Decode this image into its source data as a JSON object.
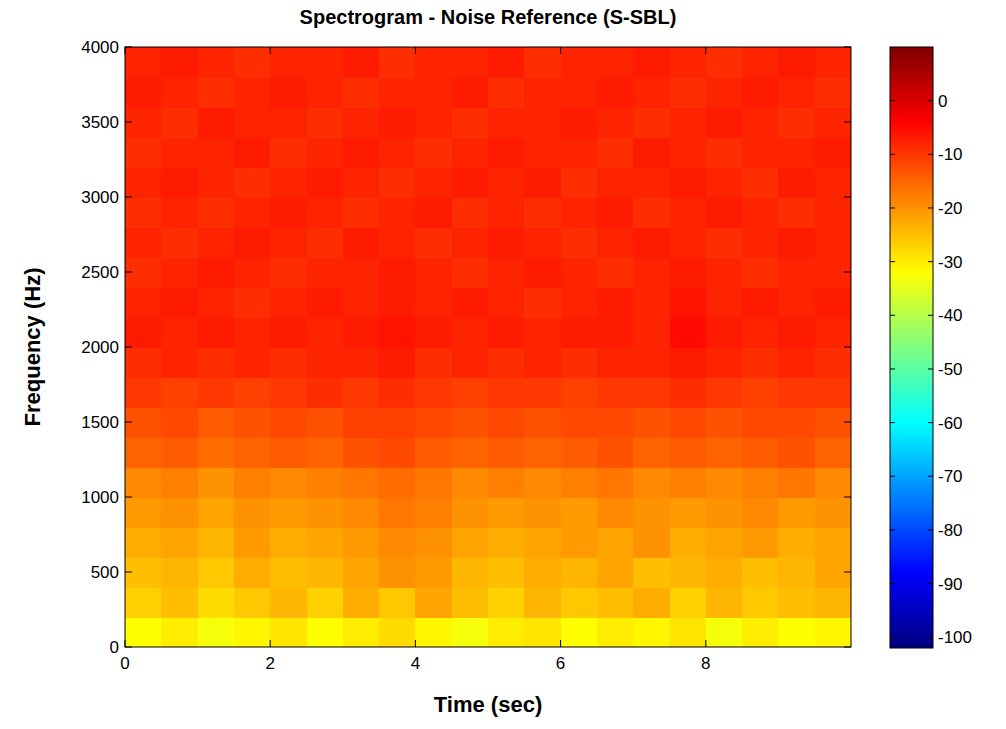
{
  "chart_data": {
    "type": "heatmap",
    "title": "Spectrogram - Noise Reference (S-SBL)",
    "x_label": "Time (sec)",
    "y_label": "Frequency (Hz)",
    "xlim": [
      0,
      10
    ],
    "ylim": [
      0,
      4000
    ],
    "xticks": [
      0,
      2,
      4,
      6,
      8
    ],
    "yticks": [
      0,
      500,
      1000,
      1500,
      2000,
      2500,
      3000,
      3500,
      4000
    ],
    "cells": [
      [
        -32,
        -30,
        -33,
        -31,
        -29,
        -32,
        -30,
        -28,
        -31,
        -33,
        -30,
        -29,
        -32,
        -30,
        -31,
        -29,
        -33,
        -30,
        -32,
        -31
      ],
      [
        -27,
        -25,
        -28,
        -26,
        -24,
        -27,
        -23,
        -26,
        -22,
        -25,
        -27,
        -24,
        -26,
        -25,
        -23,
        -27,
        -24,
        -26,
        -25,
        -24
      ],
      [
        -25,
        -24,
        -26,
        -23,
        -25,
        -24,
        -22,
        -20,
        -21,
        -24,
        -25,
        -23,
        -24,
        -22,
        -25,
        -24,
        -23,
        -25,
        -24,
        -22
      ],
      [
        -23,
        -22,
        -24,
        -21,
        -23,
        -22,
        -21,
        -19,
        -20,
        -22,
        -23,
        -22,
        -21,
        -22,
        -20,
        -23,
        -22,
        -21,
        -23,
        -22
      ],
      [
        -21,
        -20,
        -22,
        -20,
        -21,
        -20,
        -19,
        -17,
        -18,
        -20,
        -21,
        -20,
        -21,
        -19,
        -20,
        -21,
        -20,
        -19,
        -21,
        -20
      ],
      [
        -19,
        -18,
        -20,
        -18,
        -19,
        -18,
        -17,
        -16,
        -17,
        -19,
        -18,
        -19,
        -18,
        -17,
        -19,
        -18,
        -19,
        -18,
        -17,
        -19
      ],
      [
        -15,
        -14,
        -16,
        -15,
        -14,
        -15,
        -13,
        -12,
        -14,
        -15,
        -14,
        -15,
        -14,
        -13,
        -15,
        -14,
        -15,
        -14,
        -13,
        -15
      ],
      [
        -13,
        -12,
        -14,
        -13,
        -12,
        -13,
        -11,
        -11,
        -12,
        -13,
        -12,
        -13,
        -12,
        -12,
        -13,
        -12,
        -13,
        -12,
        -12,
        -13
      ],
      [
        -10,
        -11,
        -10,
        -11,
        -10,
        -9,
        -10,
        -9,
        -10,
        -11,
        -10,
        -10,
        -11,
        -10,
        -10,
        -9,
        -10,
        -11,
        -10,
        -10
      ],
      [
        -9,
        -8,
        -9,
        -8,
        -9,
        -8,
        -8,
        -7,
        -9,
        -8,
        -9,
        -8,
        -9,
        -8,
        -8,
        -7,
        -8,
        -9,
        -8,
        -9
      ],
      [
        -7,
        -8,
        -7,
        -8,
        -7,
        -8,
        -7,
        -6,
        -7,
        -8,
        -7,
        -8,
        -7,
        -7,
        -8,
        -5,
        -7,
        -8,
        -7,
        -8
      ],
      [
        -8,
        -7,
        -8,
        -9,
        -8,
        -7,
        -8,
        -7,
        -8,
        -7,
        -8,
        -9,
        -8,
        -7,
        -8,
        -6,
        -8,
        -7,
        -8,
        -7
      ],
      [
        -9,
        -8,
        -7,
        -8,
        -9,
        -8,
        -8,
        -7,
        -8,
        -9,
        -8,
        -7,
        -8,
        -9,
        -8,
        -7,
        -8,
        -9,
        -8,
        -8
      ],
      [
        -8,
        -9,
        -8,
        -7,
        -8,
        -9,
        -7,
        -8,
        -9,
        -8,
        -7,
        -8,
        -9,
        -8,
        -7,
        -8,
        -9,
        -8,
        -7,
        -8
      ],
      [
        -9,
        -8,
        -9,
        -8,
        -7,
        -8,
        -9,
        -8,
        -7,
        -9,
        -8,
        -9,
        -8,
        -7,
        -9,
        -8,
        -7,
        -8,
        -9,
        -8
      ],
      [
        -8,
        -7,
        -8,
        -9,
        -8,
        -7,
        -8,
        -9,
        -8,
        -7,
        -8,
        -7,
        -9,
        -8,
        -8,
        -7,
        -8,
        -9,
        -7,
        -8
      ],
      [
        -9,
        -8,
        -8,
        -7,
        -9,
        -8,
        -7,
        -8,
        -9,
        -8,
        -7,
        -8,
        -8,
        -9,
        -7,
        -8,
        -9,
        -8,
        -8,
        -7
      ],
      [
        -8,
        -9,
        -7,
        -8,
        -8,
        -9,
        -8,
        -7,
        -8,
        -9,
        -8,
        -8,
        -7,
        -8,
        -9,
        -8,
        -7,
        -8,
        -9,
        -8
      ],
      [
        -7,
        -8,
        -9,
        -8,
        -7,
        -8,
        -9,
        -8,
        -8,
        -7,
        -9,
        -8,
        -8,
        -7,
        -8,
        -9,
        -8,
        -7,
        -8,
        -9
      ],
      [
        -8,
        -7,
        -8,
        -9,
        -8,
        -8,
        -7,
        -9,
        -8,
        -8,
        -7,
        -9,
        -8,
        -8,
        -7,
        -8,
        -9,
        -8,
        -7,
        -8
      ]
    ],
    "colorbar": {
      "range": [
        -102,
        10
      ],
      "ticks": [
        0,
        -10,
        -20,
        -30,
        -40,
        -50,
        -60,
        -70,
        -80,
        -90,
        -100
      ]
    }
  }
}
